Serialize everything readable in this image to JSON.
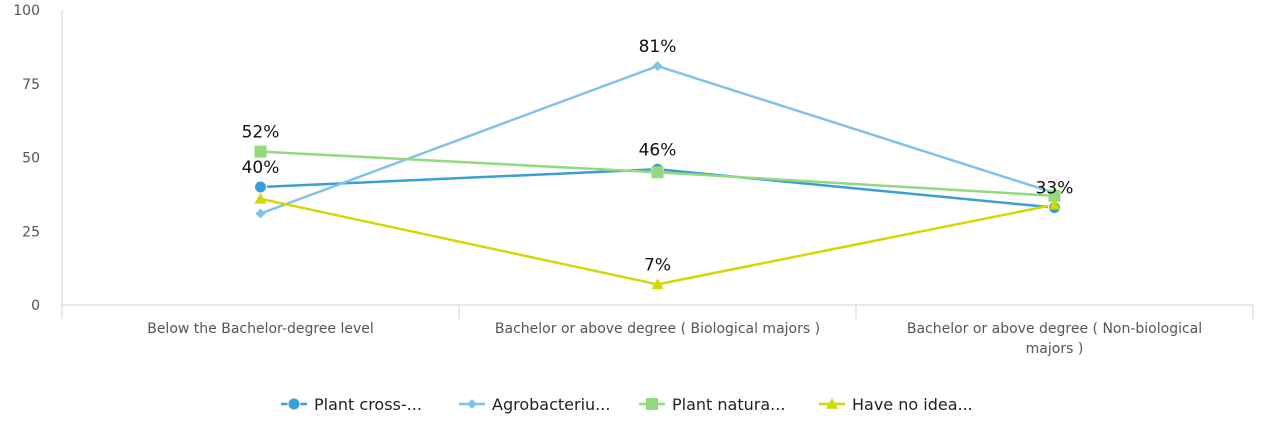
{
  "chart_data": {
    "type": "line",
    "categories": [
      [
        "Below the Bachelor-degree level"
      ],
      [
        "Bachelor or above degree ( Biological majors )"
      ],
      [
        "Bachelor or above degree ( Non-biological",
        "majors )"
      ]
    ],
    "ylim": [
      0,
      100
    ],
    "yticks": [
      0,
      25,
      50,
      75,
      100
    ],
    "grid": false,
    "legend_position": "bottom",
    "series": [
      {
        "name": "Plant cross-...",
        "values": [
          40,
          46,
          33
        ],
        "color": "#3a9fd6",
        "marker": "circle"
      },
      {
        "name": "Agrobacteriu...",
        "values": [
          31,
          81,
          38
        ],
        "color": "#7fc3ea",
        "marker": "diamond"
      },
      {
        "name": "Plant natura...",
        "values": [
          52,
          45,
          37
        ],
        "color": "#93d97f",
        "marker": "square"
      },
      {
        "name": "Have no idea...",
        "values": [
          36,
          7,
          34
        ],
        "color": "#d4d800",
        "marker": "triangle"
      }
    ],
    "data_labels": [
      {
        "series": 0,
        "index": 0,
        "text": "40%"
      },
      {
        "series": 2,
        "index": 0,
        "text": "52%"
      },
      {
        "series": 1,
        "index": 1,
        "text": "81%"
      },
      {
        "series": 0,
        "index": 1,
        "text": "46%"
      },
      {
        "series": 3,
        "index": 1,
        "text": "7%"
      },
      {
        "series": 0,
        "index": 2,
        "text": "33%"
      }
    ]
  }
}
